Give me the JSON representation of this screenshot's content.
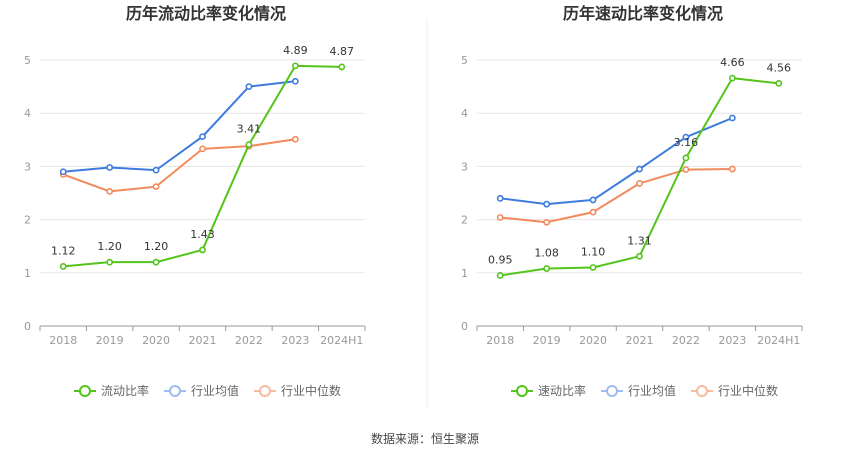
{
  "source": "数据来源：恒生聚源",
  "chart_data": [
    {
      "type": "line",
      "title": "历年流动比率变化情况",
      "categories": [
        "2018",
        "2019",
        "2020",
        "2021",
        "2022",
        "2023",
        "2024H1"
      ],
      "yticks": [
        "0",
        "1",
        "2",
        "3",
        "4",
        "5"
      ],
      "ylim": [
        0,
        5
      ],
      "grid": true,
      "legend_position": "bottom",
      "series": [
        {
          "name": "流动比率",
          "color": "#52c41a",
          "label_values": true,
          "values": [
            1.12,
            1.2,
            1.2,
            1.43,
            3.41,
            4.89,
            4.87
          ],
          "labels": [
            "1.12",
            "1.20",
            "1.20",
            "1.43",
            "3.41",
            "4.89",
            "4.87"
          ]
        },
        {
          "name": "行业均值",
          "color": "#3d7be0",
          "values": [
            2.9,
            2.98,
            2.93,
            3.56,
            4.5,
            4.6,
            null
          ]
        },
        {
          "name": "行业中位数",
          "color": "#f28a5c",
          "values": [
            2.85,
            2.53,
            2.62,
            3.33,
            3.38,
            3.51,
            null
          ]
        }
      ]
    },
    {
      "type": "line",
      "title": "历年速动比率变化情况",
      "categories": [
        "2018",
        "2019",
        "2020",
        "2021",
        "2022",
        "2023",
        "2024H1"
      ],
      "yticks": [
        "0",
        "1",
        "2",
        "3",
        "4",
        "5"
      ],
      "ylim": [
        0,
        5
      ],
      "grid": true,
      "legend_position": "bottom",
      "series": [
        {
          "name": "速动比率",
          "color": "#52c41a",
          "label_values": true,
          "values": [
            0.95,
            1.08,
            1.1,
            1.31,
            3.16,
            4.66,
            4.56
          ],
          "labels": [
            "0.95",
            "1.08",
            "1.10",
            "1.31",
            "3.16",
            "4.66",
            "4.56"
          ]
        },
        {
          "name": "行业均值",
          "color": "#3d7be0",
          "values": [
            2.4,
            2.29,
            2.37,
            2.95,
            3.55,
            3.91,
            null
          ]
        },
        {
          "name": "行业中位数",
          "color": "#f28a5c",
          "values": [
            2.04,
            1.95,
            2.14,
            2.68,
            2.94,
            2.95,
            null
          ]
        }
      ]
    }
  ]
}
